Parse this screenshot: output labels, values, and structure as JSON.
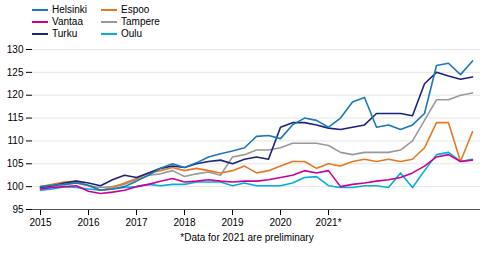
{
  "chart_data": {
    "type": "line",
    "categories": [
      "2015",
      null,
      null,
      null,
      "2016",
      null,
      null,
      null,
      "2017",
      null,
      null,
      null,
      "2018",
      null,
      null,
      null,
      "2019",
      null,
      null,
      null,
      "2020",
      null,
      null,
      null,
      "2021*",
      null,
      null,
      null,
      null,
      null,
      null,
      null,
      null,
      null,
      null,
      null,
      null
    ],
    "series": [
      {
        "name": "Helsinki",
        "color": "#1a7ab5",
        "values": [
          100.0,
          100.3,
          100.5,
          100.8,
          100.3,
          99.2,
          99.5,
          100.0,
          101.2,
          102.5,
          104.0,
          105.0,
          104.2,
          105.2,
          106.5,
          107.2,
          107.8,
          108.5,
          111.0,
          111.2,
          110.5,
          113.5,
          115.0,
          114.5,
          113.0,
          115.0,
          118.5,
          119.5,
          113.0,
          113.5,
          112.5,
          113.5,
          116.0,
          126.5,
          127.0,
          124.5,
          127.5
        ]
      },
      {
        "name": "Vantaa",
        "color": "#cc0099",
        "values": [
          99.5,
          99.8,
          100.0,
          100.2,
          99.0,
          98.5,
          98.8,
          99.2,
          100.0,
          100.5,
          101.2,
          101.8,
          101.0,
          101.2,
          101.5,
          101.2,
          101.0,
          101.2,
          101.2,
          101.5,
          102.0,
          102.5,
          103.5,
          103.0,
          103.5,
          100.0,
          100.5,
          100.8,
          101.2,
          101.5,
          102.0,
          103.0,
          104.5,
          106.5,
          107.0,
          105.5,
          105.8
        ]
      },
      {
        "name": "Turku",
        "color": "#1a237e",
        "values": [
          99.8,
          100.2,
          100.8,
          101.2,
          100.8,
          100.2,
          101.5,
          102.5,
          102.0,
          103.0,
          104.0,
          104.5,
          104.2,
          105.0,
          105.5,
          105.8,
          105.0,
          106.0,
          106.5,
          106.0,
          113.0,
          114.0,
          114.0,
          113.5,
          112.8,
          112.5,
          113.0,
          113.5,
          116.0,
          116.0,
          116.0,
          115.5,
          122.5,
          125.0,
          124.2,
          123.5,
          124.0
        ]
      },
      {
        "name": "Espoo",
        "color": "#e87722",
        "values": [
          100.0,
          100.5,
          101.0,
          101.2,
          100.2,
          99.2,
          99.8,
          100.8,
          101.8,
          103.0,
          103.5,
          104.2,
          103.5,
          104.0,
          103.5,
          103.0,
          103.5,
          104.5,
          103.0,
          103.5,
          104.5,
          105.5,
          105.5,
          104.0,
          105.0,
          104.5,
          105.5,
          106.0,
          105.5,
          106.0,
          105.5,
          106.0,
          108.5,
          114.0,
          114.0,
          105.5,
          112.0
        ]
      },
      {
        "name": "Tampere",
        "color": "#999999",
        "values": [
          99.5,
          100.0,
          100.5,
          100.8,
          100.2,
          99.8,
          100.0,
          100.5,
          101.5,
          102.5,
          102.8,
          103.5,
          102.2,
          102.8,
          103.2,
          102.5,
          106.5,
          107.0,
          108.0,
          108.0,
          108.5,
          109.5,
          109.5,
          109.5,
          109.0,
          107.5,
          107.0,
          107.5,
          107.5,
          107.5,
          108.0,
          110.0,
          114.5,
          119.0,
          119.0,
          120.0,
          120.5
        ]
      },
      {
        "name": "Oulu",
        "color": "#00b0d8",
        "values": [
          99.2,
          99.5,
          100.0,
          99.8,
          99.5,
          99.2,
          99.5,
          99.8,
          100.0,
          100.5,
          100.2,
          100.5,
          100.5,
          101.0,
          101.0,
          101.0,
          100.2,
          100.8,
          100.2,
          100.2,
          100.2,
          100.8,
          102.0,
          102.2,
          100.2,
          99.8,
          99.8,
          100.2,
          100.2,
          99.8,
          103.0,
          99.8,
          103.5,
          107.0,
          107.5,
          105.5,
          106.0
        ]
      }
    ],
    "ylim": [
      95,
      130
    ],
    "yticks": [
      95,
      100,
      105,
      110,
      115,
      120,
      125,
      130
    ],
    "grid": true,
    "legend": "upper left",
    "annotations": [
      "*Data for 2021 are preliminary"
    ]
  }
}
